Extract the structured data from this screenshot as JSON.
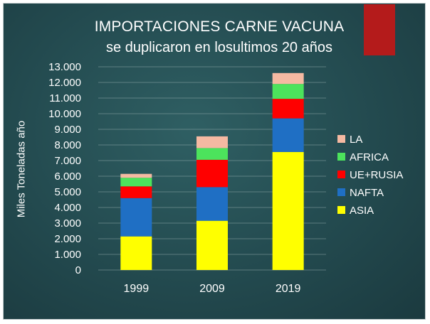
{
  "chart_data": {
    "type": "bar",
    "stacked": true,
    "title": "IMPORTACIONES CARNE VACUNA",
    "subtitle": "se duplicaron  en losultimos 20 años",
    "xlabel": "",
    "ylabel": "Miles Toneladas año",
    "ylim": [
      0,
      13000
    ],
    "yticks": [
      0,
      1000,
      2000,
      3000,
      4000,
      5000,
      6000,
      7000,
      8000,
      9000,
      10000,
      11000,
      12000,
      13000
    ],
    "ytick_labels": [
      "0",
      "1.000",
      "2.000",
      "3.000",
      "4.000",
      "5.000",
      "6.000",
      "7.000",
      "8.000",
      "9.000",
      "10.000",
      "11.000",
      "12.000",
      "13.000"
    ],
    "grid": true,
    "legend_position": "right",
    "categories": [
      "1999",
      "2009",
      "2019"
    ],
    "series": [
      {
        "name": "ASIA",
        "color": "#ffff00",
        "values": [
          2150,
          3150,
          7550
        ]
      },
      {
        "name": "NAFTA",
        "color": "#1f6fc4",
        "values": [
          2450,
          2150,
          2150
        ]
      },
      {
        "name": "UE+RUSIA",
        "color": "#ff0000",
        "values": [
          750,
          1750,
          1250
        ]
      },
      {
        "name": "AFRICA",
        "color": "#4ce35c",
        "values": [
          550,
          750,
          950
        ]
      },
      {
        "name": "LA",
        "color": "#f5b9a2",
        "values": [
          250,
          750,
          700
        ]
      }
    ]
  }
}
